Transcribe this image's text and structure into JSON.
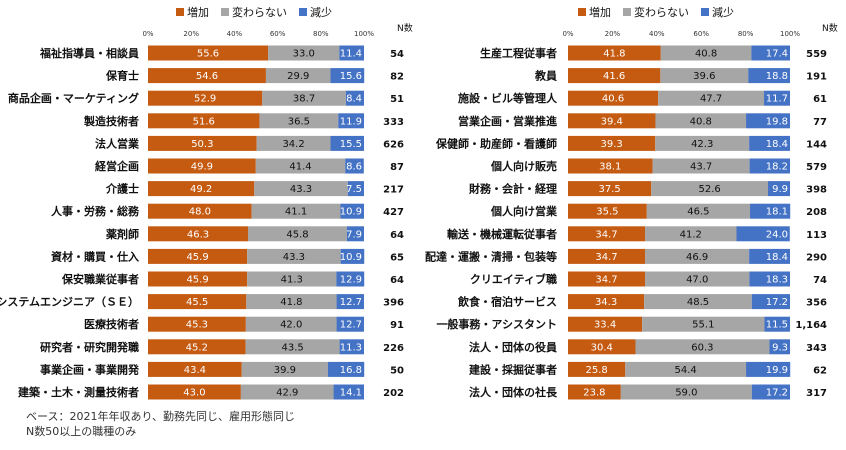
{
  "legend": [
    {
      "name": "増加",
      "color": "#C55A11"
    },
    {
      "name": "変わらない",
      "color": "#A6A6A6"
    },
    {
      "name": "減少",
      "color": "#4472C4"
    }
  ],
  "note_lines": [
    "ベース：2021年年収あり、勤務先同じ、雇用形態同じ",
    "N数50以上の職種のみ"
  ],
  "chart_data": [
    {
      "type": "bar",
      "stacked": true,
      "orientation": "horizontal",
      "xlim": [
        0,
        100
      ],
      "xticks": [
        "0%",
        "20%",
        "40%",
        "60%",
        "80%",
        "100%"
      ],
      "n_header": "N数",
      "categories": [
        "福祉指導員・相談員",
        "保育士",
        "商品企画・マーケティング",
        "製造技術者",
        "法人営業",
        "経営企画",
        "介護士",
        "人事・労務・総務",
        "薬剤師",
        "資材・購買・仕入",
        "保安職業従事者",
        "システムエンジニア（ＳＥ）",
        "医療技術者",
        "研究者・研究開発職",
        "事業企画・事業開発",
        "建築・土木・測量技術者"
      ],
      "series": [
        {
          "name": "増加",
          "values": [
            55.6,
            54.6,
            52.9,
            51.6,
            50.3,
            49.9,
            49.2,
            48.0,
            46.3,
            45.9,
            45.9,
            45.5,
            45.3,
            45.2,
            43.4,
            43.0
          ]
        },
        {
          "name": "変わらない",
          "values": [
            33.0,
            29.9,
            38.7,
            36.5,
            34.2,
            41.4,
            43.3,
            41.1,
            45.8,
            43.3,
            41.3,
            41.8,
            42.0,
            43.5,
            39.9,
            42.9
          ]
        },
        {
          "name": "減少",
          "values": [
            11.4,
            15.6,
            8.4,
            11.9,
            15.5,
            8.6,
            7.5,
            10.9,
            7.9,
            10.9,
            12.9,
            12.7,
            12.7,
            11.3,
            16.8,
            14.1
          ]
        }
      ],
      "n": [
        "54",
        "82",
        "51",
        "333",
        "626",
        "87",
        "217",
        "427",
        "64",
        "65",
        "64",
        "396",
        "91",
        "226",
        "50",
        "202"
      ]
    },
    {
      "type": "bar",
      "stacked": true,
      "orientation": "horizontal",
      "xlim": [
        0,
        100
      ],
      "xticks": [
        "0%",
        "20%",
        "40%",
        "60%",
        "80%",
        "100%"
      ],
      "n_header": "N数",
      "categories": [
        "生産工程従事者",
        "教員",
        "施設・ビル等管理人",
        "営業企画・営業推進",
        "保健師・助産師・看護師",
        "個人向け販売",
        "財務・会計・経理",
        "個人向け営業",
        "輸送・機械運転従事者",
        "配達・運搬・清掃・包装等",
        "クリエイティブ職",
        "飲食・宿泊サービス",
        "一般事務・アシスタント",
        "法人・団体の役員",
        "建設・採掘従事者",
        "法人・団体の社長"
      ],
      "series": [
        {
          "name": "増加",
          "values": [
            41.8,
            41.6,
            40.6,
            39.4,
            39.3,
            38.1,
            37.5,
            35.5,
            34.7,
            34.7,
            34.7,
            34.3,
            33.4,
            30.4,
            25.8,
            23.8
          ]
        },
        {
          "name": "変わらない",
          "values": [
            40.8,
            39.6,
            47.7,
            40.8,
            42.3,
            43.7,
            52.6,
            46.5,
            41.2,
            46.9,
            47.0,
            48.5,
            55.1,
            60.3,
            54.4,
            59.0
          ]
        },
        {
          "name": "減少",
          "values": [
            17.4,
            18.8,
            11.7,
            19.8,
            18.4,
            18.2,
            9.9,
            18.1,
            24.0,
            18.4,
            18.3,
            17.2,
            11.5,
            9.3,
            19.9,
            17.2
          ]
        }
      ],
      "n": [
        "559",
        "191",
        "61",
        "77",
        "144",
        "579",
        "398",
        "208",
        "113",
        "290",
        "74",
        "356",
        "1,164",
        "343",
        "62",
        "317"
      ]
    }
  ]
}
